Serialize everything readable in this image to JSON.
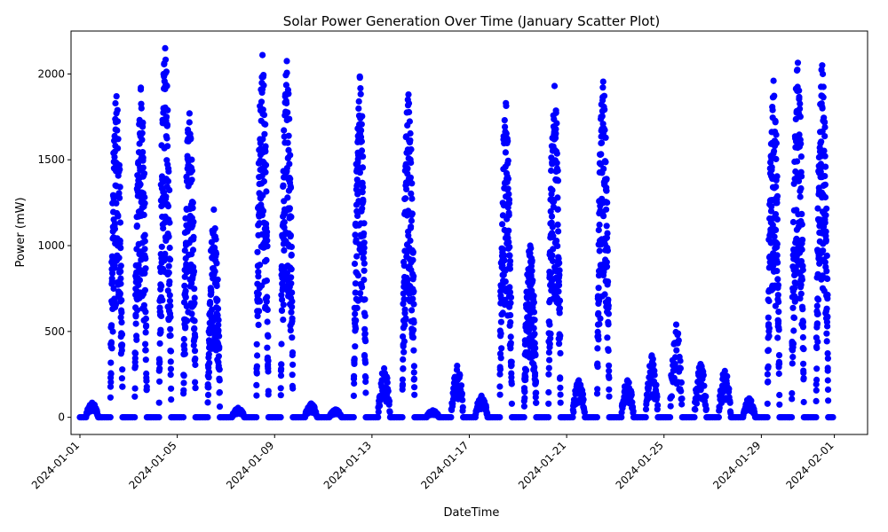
{
  "chart_data": {
    "type": "scatter",
    "title": "Solar Power Generation Over Time (January Scatter Plot)",
    "xlabel": "DateTime",
    "ylabel": "Power (mW)",
    "ylim": [
      -100,
      2250
    ],
    "xlim": [
      "2024-01-01T00:00",
      "2024-02-02T00:00"
    ],
    "grid": false,
    "legend": "none",
    "marker_color": "#0000ff",
    "x_ticks": [
      "2024-01-01",
      "2024-01-05",
      "2024-01-09",
      "2024-01-13",
      "2024-01-17",
      "2024-01-21",
      "2024-01-25",
      "2024-01-29",
      "2024-02-01"
    ],
    "y_ticks": [
      0,
      500,
      1000,
      1500,
      2000
    ],
    "daily_peaks": [
      {
        "date": "2024-01-01",
        "peak": 85
      },
      {
        "date": "2024-01-02",
        "peak": 1870
      },
      {
        "date": "2024-01-03",
        "peak": 1920
      },
      {
        "date": "2024-01-04",
        "peak": 2150
      },
      {
        "date": "2024-01-05",
        "peak": 1770
      },
      {
        "date": "2024-01-06",
        "peak": 1210
      },
      {
        "date": "2024-01-07",
        "peak": 55
      },
      {
        "date": "2024-01-08",
        "peak": 2110
      },
      {
        "date": "2024-01-09",
        "peak": 2075
      },
      {
        "date": "2024-01-10",
        "peak": 80
      },
      {
        "date": "2024-01-11",
        "peak": 45
      },
      {
        "date": "2024-01-12",
        "peak": 1985
      },
      {
        "date": "2024-01-13",
        "peak": 285
      },
      {
        "date": "2024-01-14",
        "peak": 1880
      },
      {
        "date": "2024-01-15",
        "peak": 40
      },
      {
        "date": "2024-01-16",
        "peak": 300
      },
      {
        "date": "2024-01-17",
        "peak": 125
      },
      {
        "date": "2024-01-18",
        "peak": 1830
      },
      {
        "date": "2024-01-19",
        "peak": 1000
      },
      {
        "date": "2024-01-20",
        "peak": 1930
      },
      {
        "date": "2024-01-21",
        "peak": 215
      },
      {
        "date": "2024-01-22",
        "peak": 1955
      },
      {
        "date": "2024-01-23",
        "peak": 215
      },
      {
        "date": "2024-01-24",
        "peak": 360
      },
      {
        "date": "2024-01-25",
        "peak": 540
      },
      {
        "date": "2024-01-26",
        "peak": 310
      },
      {
        "date": "2024-01-27",
        "peak": 270
      },
      {
        "date": "2024-01-28",
        "peak": 110
      },
      {
        "date": "2024-01-29",
        "peak": 1960
      },
      {
        "date": "2024-01-30",
        "peak": 2065
      },
      {
        "date": "2024-01-31",
        "peak": 2050
      }
    ]
  }
}
